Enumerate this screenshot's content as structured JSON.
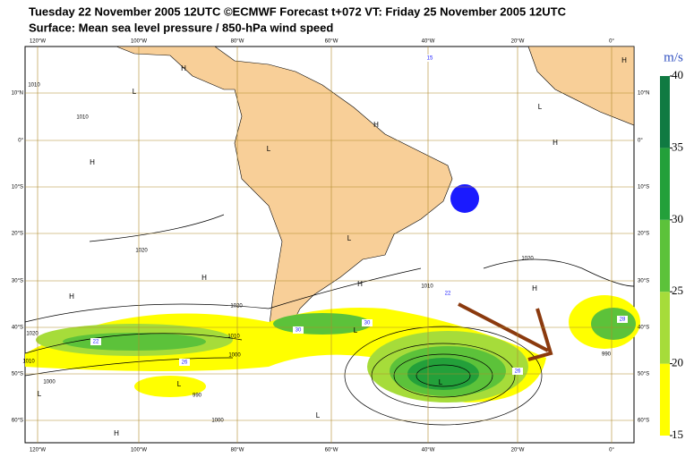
{
  "header": {
    "line1": "Tuesday 22 November 2005 12UTC ©ECMWF Forecast t+072 VT: Friday 25 November 2005 12UTC",
    "line2": "Surface: Mean sea level pressure / 850-hPa wind speed"
  },
  "map": {
    "lon_labels": [
      "120°W",
      "100°W",
      "80°W",
      "60°W",
      "40°W",
      "20°W",
      "0°"
    ],
    "lat_labels": [
      "10°N",
      "0°",
      "10°S",
      "20°S",
      "30°S",
      "40°S",
      "50°S",
      "60°S"
    ],
    "pressure_centers": [
      "L",
      "H",
      "H",
      "H",
      "L",
      "H",
      "H",
      "L",
      "L",
      "H",
      "H",
      "H",
      "H",
      "L",
      "L",
      "L",
      "H",
      "L",
      "L"
    ],
    "isobar_labels": [
      "1010",
      "1010",
      "1020",
      "1020",
      "1020",
      "1010",
      "1000",
      "990",
      "1000",
      "1000",
      "1010",
      "1020",
      "1010",
      "990"
    ],
    "wind_labels": [
      "22",
      "26",
      "30",
      "30",
      "22",
      "26",
      "28",
      "15"
    ]
  },
  "colorbar": {
    "unit": "m/s",
    "range": [
      15,
      40
    ],
    "ticks": [
      15,
      20,
      25,
      30,
      35,
      40
    ],
    "colors": [
      "#ffff00",
      "#a6dc3a",
      "#5cc23a",
      "#23a03a",
      "#107a42"
    ]
  }
}
